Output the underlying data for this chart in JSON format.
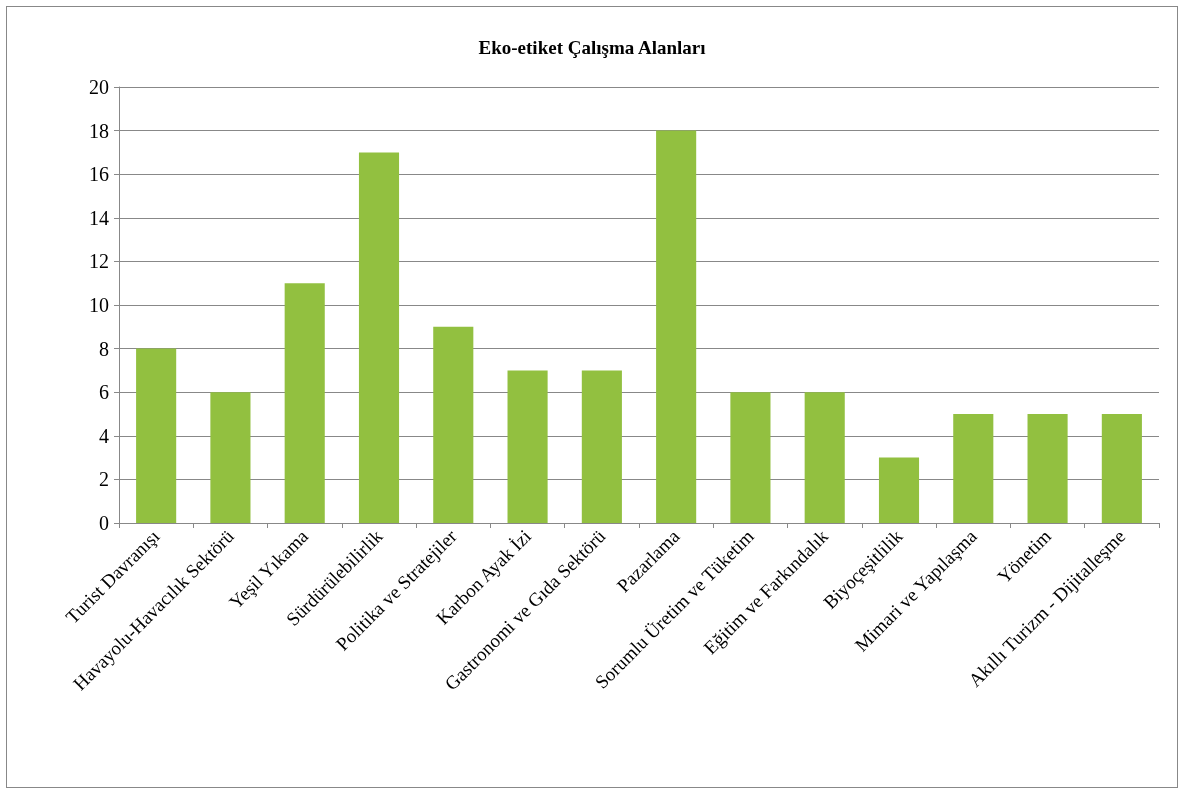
{
  "chart_data": {
    "type": "bar",
    "title": "Eko-etiket Çalışma Alanları",
    "categories": [
      "Turist Davranışı",
      "Havayolu-Havacılık Sektörü",
      "Yeşil Yıkama",
      "Sürdürülebilirlik",
      "Politika ve Stratejiler",
      "Karbon Ayak İzi",
      "Gastronomi ve Gıda Sektörü",
      "Pazarlama",
      "Sorumlu Üretim ve Tüketim",
      "Eğitim ve Farkındalık",
      "Biyoçeşitlilik",
      "Mimari ve Yapılaşma",
      "Yönetim",
      "Akıllı Turizm - Dijitalleşme"
    ],
    "values": [
      8,
      6,
      11,
      17,
      9,
      7,
      7,
      18,
      6,
      6,
      3,
      5,
      5,
      5
    ],
    "color": "#92c040",
    "ylim": [
      0,
      20
    ],
    "yticks": [
      0,
      2,
      4,
      6,
      8,
      10,
      12,
      14,
      16,
      18,
      20
    ],
    "grid": "y"
  }
}
